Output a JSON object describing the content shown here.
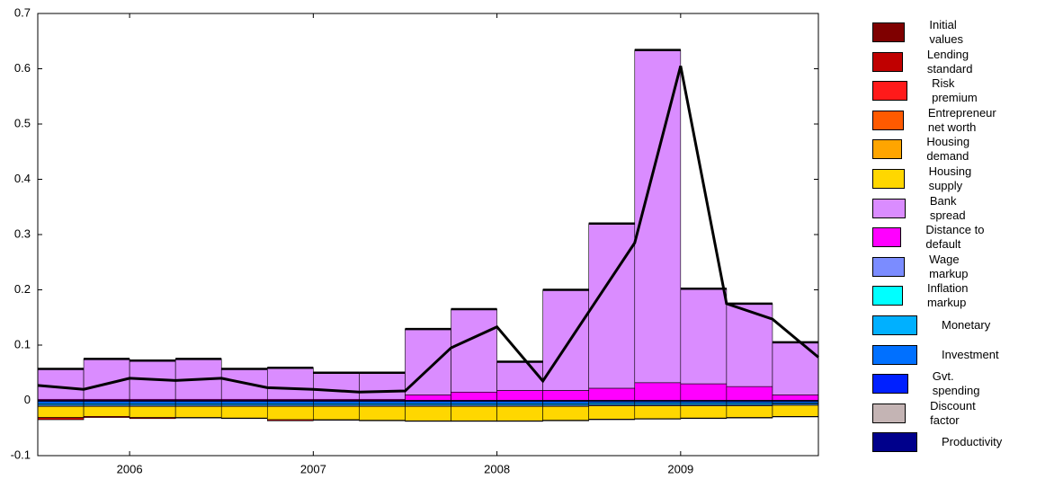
{
  "chart_data": {
    "type": "stacked-bar-line",
    "xlim": [
      0,
      17
    ],
    "xticks": [
      {
        "value": 2,
        "label": "2006"
      },
      {
        "value": 6,
        "label": "2007"
      },
      {
        "value": 10,
        "label": "2008"
      },
      {
        "value": 14,
        "label": "2009"
      }
    ],
    "ylim": [
      -0.1,
      0.7
    ],
    "yticks": [
      -0.1,
      0,
      0.1,
      0.2,
      0.3,
      0.4,
      0.5,
      0.6,
      0.7
    ],
    "series": [
      {
        "name": "Initial values",
        "color": "#7f0000",
        "values": [
          0,
          0,
          0,
          0,
          0,
          0,
          0,
          0,
          0,
          0,
          0,
          0,
          0,
          0,
          0,
          0,
          0
        ]
      },
      {
        "name": "Lending standard",
        "color": "#c00000",
        "values": [
          -0.004,
          -0.002,
          -0.002,
          -0.001,
          -0.001,
          -0.002,
          -0.001,
          -0.001,
          -0.001,
          -0.001,
          -0.001,
          -0.001,
          -0.001,
          -0.001,
          -0.001,
          -0.001,
          -0.001
        ]
      },
      {
        "name": "Risk premium",
        "color": "#ff1a1a",
        "values": [
          0,
          0,
          0,
          0,
          0,
          0,
          0,
          0,
          0,
          0,
          0,
          0,
          0,
          0,
          0,
          0,
          0
        ]
      },
      {
        "name": "Entrepreneur net worth",
        "color": "#ff5a00",
        "values": [
          0,
          0,
          0,
          0,
          0,
          0,
          0,
          0,
          0,
          0,
          0,
          0,
          0,
          0,
          0,
          0,
          0
        ]
      },
      {
        "name": "Housing demand",
        "color": "#ffa500",
        "values": [
          0,
          0,
          0,
          0,
          0,
          0,
          0,
          0,
          0,
          0,
          0,
          0,
          0,
          0,
          0,
          0,
          0
        ]
      },
      {
        "name": "Housing supply",
        "color": "#ffd700",
        "values": [
          -0.02,
          -0.018,
          -0.02,
          -0.02,
          -0.021,
          -0.024,
          -0.024,
          -0.025,
          -0.026,
          -0.026,
          -0.026,
          -0.025,
          -0.024,
          -0.023,
          -0.022,
          -0.021,
          -0.02
        ]
      },
      {
        "name": "Bank spread",
        "color": "#da8cff",
        "values": [
          0.055,
          0.073,
          0.07,
          0.073,
          0.055,
          0.057,
          0.048,
          0.048,
          0.119,
          0.15,
          0.052,
          0.182,
          0.298,
          0.602,
          0.172,
          0.15,
          0.095
        ]
      },
      {
        "name": "Distance to default",
        "color": "#ff00ff",
        "values": [
          0.002,
          0.002,
          0.002,
          0.002,
          0.002,
          0.002,
          0.002,
          0.002,
          0.01,
          0.015,
          0.018,
          0.018,
          0.022,
          0.032,
          0.03,
          0.025,
          0.01
        ]
      },
      {
        "name": "Wage markup",
        "color": "#7b8cff",
        "values": [
          -0.002,
          -0.002,
          -0.002,
          -0.002,
          -0.002,
          -0.002,
          -0.002,
          -0.002,
          -0.002,
          -0.002,
          -0.002,
          -0.002,
          -0.002,
          -0.002,
          -0.002,
          -0.002,
          -0.002
        ]
      },
      {
        "name": "Inflation markup",
        "color": "#00ffff",
        "values": [
          0,
          0,
          0,
          0,
          0,
          0,
          0,
          0,
          0,
          0,
          0,
          0,
          0,
          0,
          0,
          0,
          0
        ]
      },
      {
        "name": "Monetary",
        "color": "#00b0ff",
        "values": [
          -0.003,
          -0.003,
          -0.003,
          -0.003,
          -0.003,
          -0.003,
          -0.003,
          -0.003,
          -0.003,
          -0.003,
          -0.003,
          -0.003,
          -0.003,
          -0.003,
          -0.003,
          -0.003,
          -0.002
        ]
      },
      {
        "name": "Investment",
        "color": "#0070ff",
        "values": [
          -0.004,
          -0.004,
          -0.004,
          -0.004,
          -0.004,
          -0.004,
          -0.004,
          -0.004,
          -0.004,
          -0.004,
          -0.004,
          -0.004,
          -0.003,
          -0.003,
          -0.003,
          -0.003,
          -0.003
        ]
      },
      {
        "name": "Gvt. spending",
        "color": "#0020ff",
        "values": [
          0,
          0,
          0,
          0,
          0,
          0,
          0,
          0,
          0,
          0,
          0,
          0,
          0,
          0,
          0,
          0,
          0
        ]
      },
      {
        "name": "Discount factor",
        "color": "#c4b4b4",
        "values": [
          0,
          0,
          0,
          0,
          0,
          0,
          0,
          0,
          0,
          0,
          0,
          0,
          0,
          0,
          0,
          0,
          0
        ]
      },
      {
        "name": "Productivity",
        "color": "#00008b",
        "values": [
          -0.002,
          -0.002,
          -0.002,
          -0.002,
          -0.002,
          -0.002,
          -0.002,
          -0.002,
          -0.002,
          -0.002,
          -0.002,
          -0.002,
          -0.002,
          -0.002,
          -0.002,
          -0.002,
          -0.002
        ]
      }
    ],
    "line": {
      "color": "#000000",
      "x": [
        0,
        1,
        2,
        3,
        4,
        5,
        6,
        7,
        8,
        9,
        10,
        11,
        12,
        13,
        14,
        15,
        16,
        17
      ],
      "values": [
        0.027,
        0.02,
        0.04,
        0.036,
        0.04,
        0.023,
        0.02,
        0.015,
        0.017,
        0.095,
        0.133,
        0.035,
        0.16,
        0.285,
        0.605,
        0.175,
        0.147,
        0.078
      ]
    }
  }
}
